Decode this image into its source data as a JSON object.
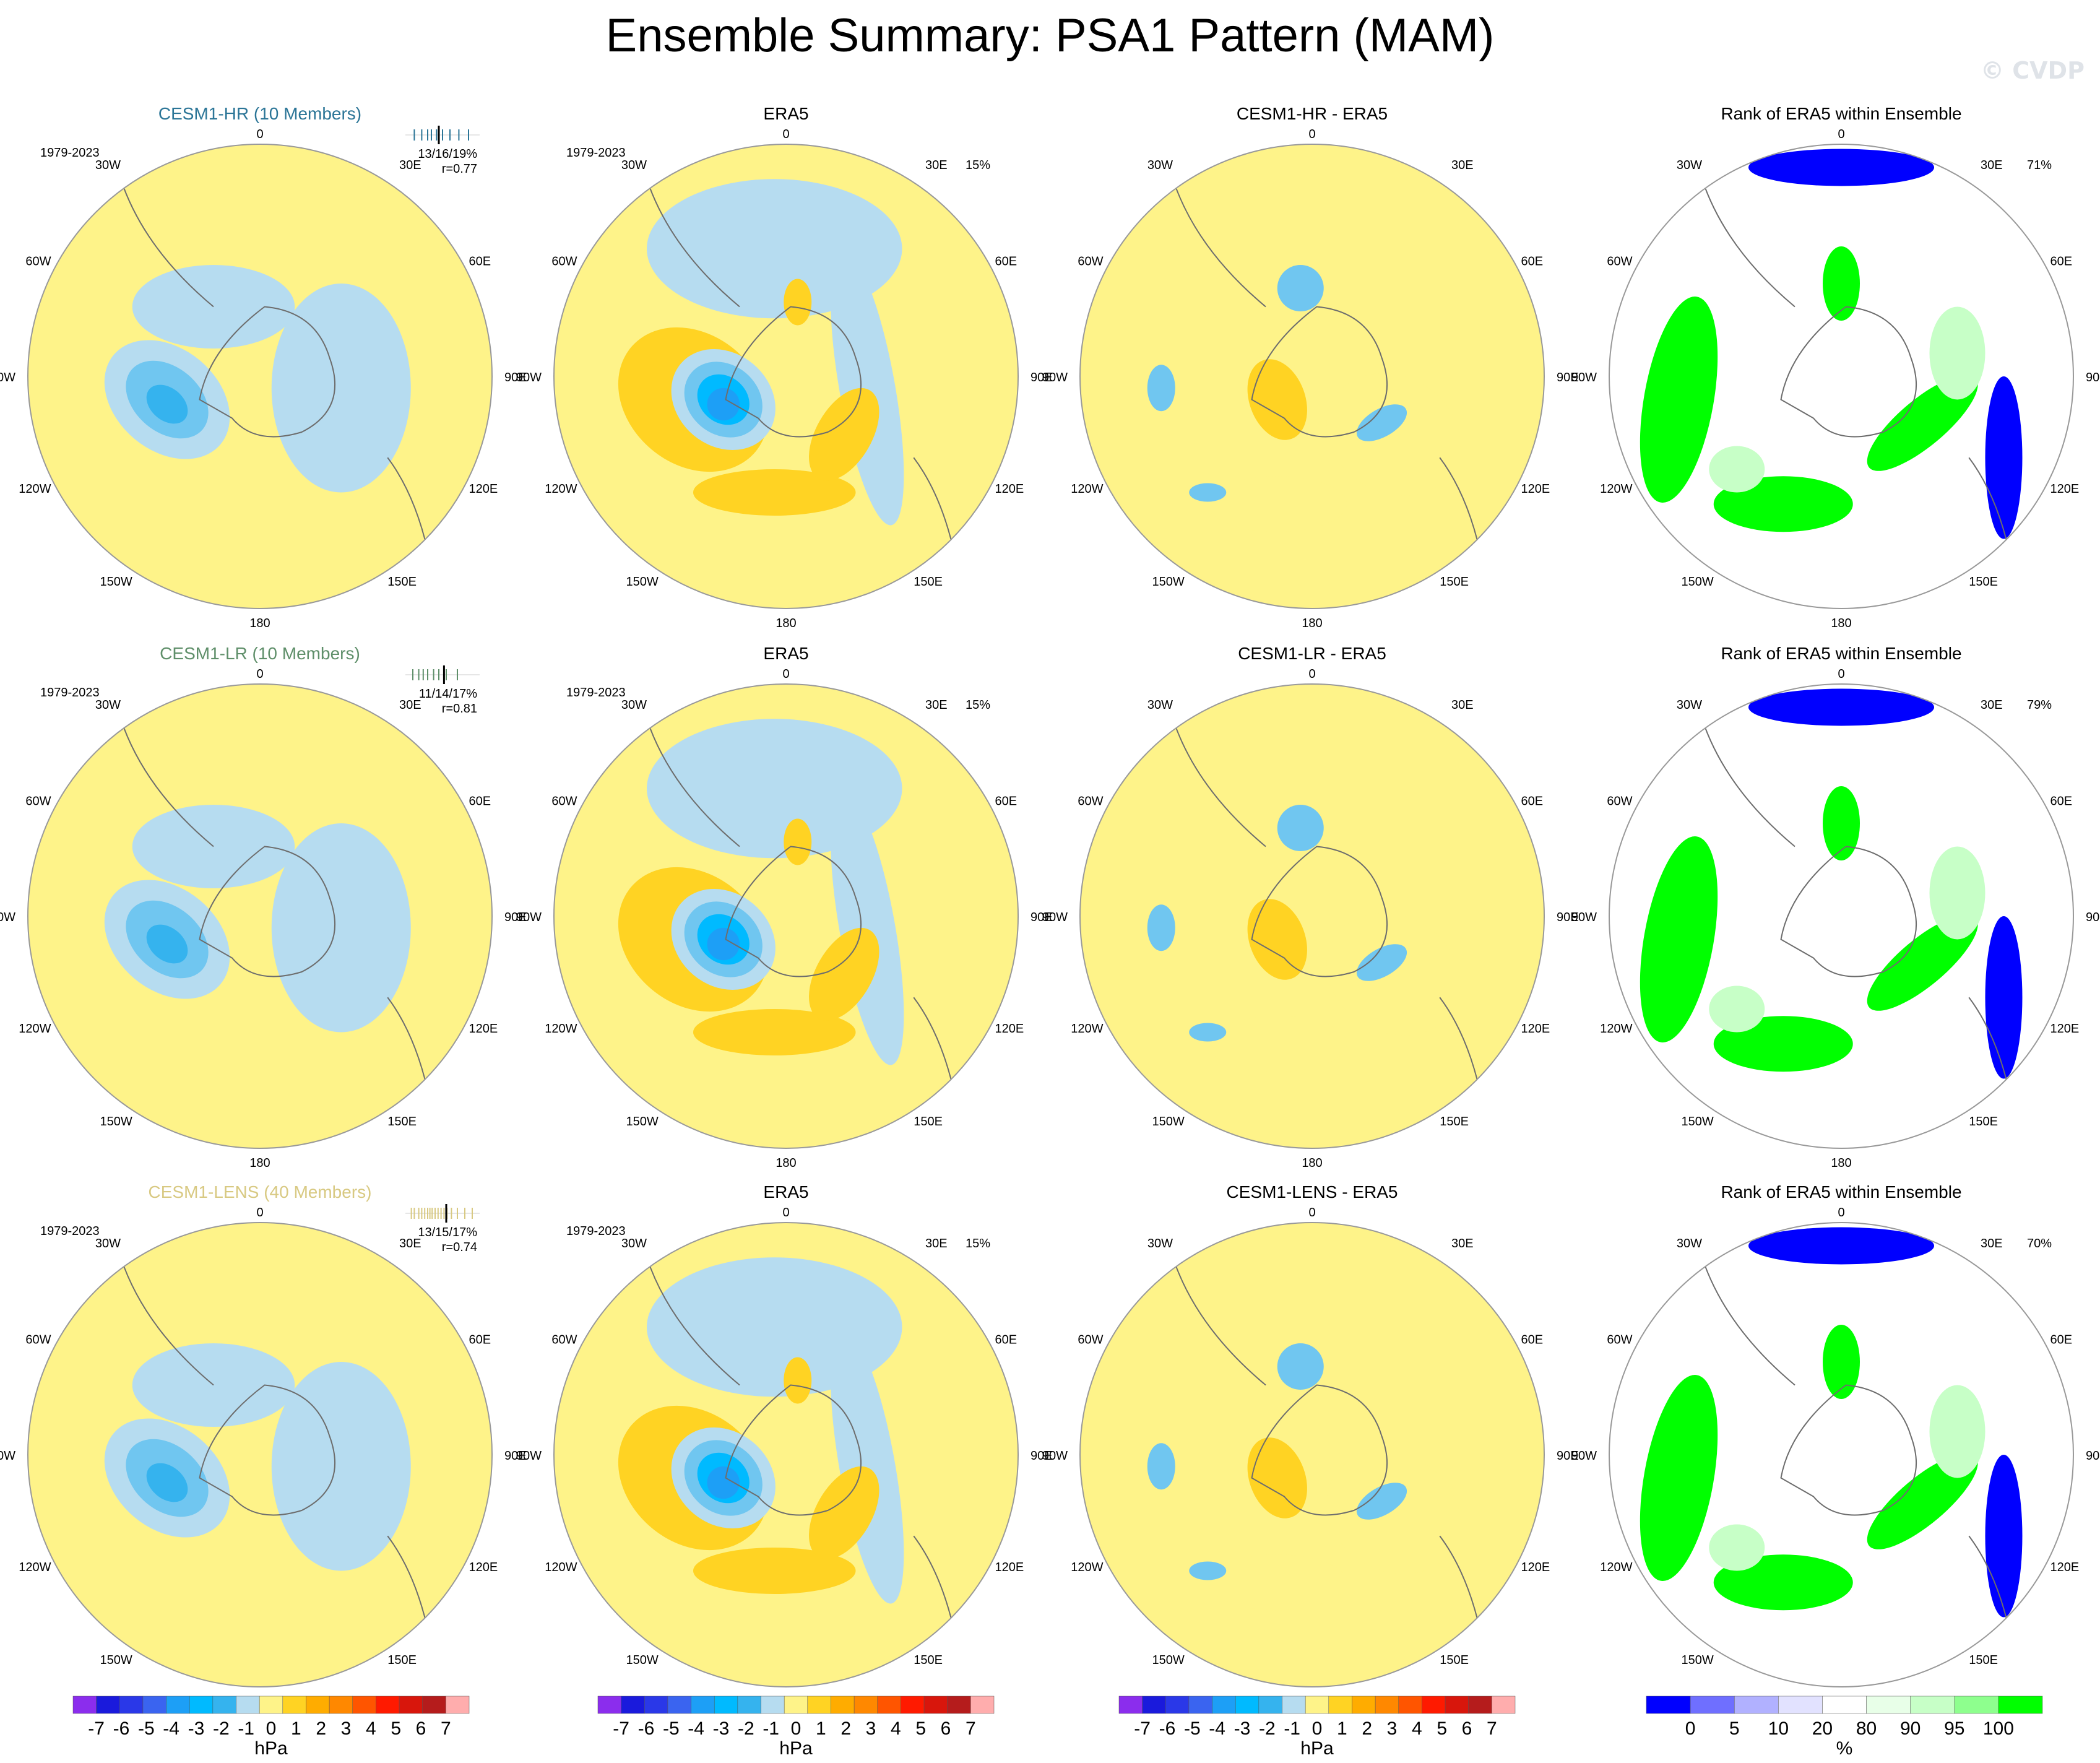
{
  "title": "Ensemble Summary: PSA1 Pattern (MAM)",
  "watermark": "© CVDP",
  "colors": {
    "hr": "#2b7597",
    "lr": "#5f8f6a",
    "lens": "#d8c982",
    "ocean": "#b6dcf0",
    "coast": "#6d6d6d",
    "pos1": "#fef389",
    "pos2": "#ffd323",
    "pos3": "#ffac00",
    "neg1": "#b6dcf0",
    "neg2": "#70c6f0",
    "neg3": "#35b3ee",
    "neg4": "#00baff",
    "neg5": "#1d9ff6",
    "rank_low": "#0000ff",
    "rank_5": "#6f6fff",
    "rank_10": "#b1b1ff",
    "rank_20": "#e2e2ff",
    "rank_mid": "#ffffff",
    "rank_80": "#e8ffe8",
    "rank_90": "#c7ffc7",
    "rank_95": "#8eff8e",
    "rank_high": "#00ff00"
  },
  "map_labels": {
    "lon_top": "0",
    "lon_bottom": "180",
    "lon_30W": "30W",
    "lon_30E": "30E",
    "lon_60W": "60W",
    "lon_60E": "60E",
    "lon_90W": "90W",
    "lon_90E": "90E",
    "lon_120W": "120W",
    "lon_120E": "120E",
    "lon_150W": "150W",
    "lon_150E": "150E"
  },
  "rows": [
    {
      "model": "CESM1-HR (10 Members)",
      "model_color_key": "hr",
      "years": "1979-2023",
      "stats_pct": "13/16/19%",
      "stats_r": "r=0.77",
      "era5_title": "ERA5",
      "era5_years": "1979-2023",
      "era5_pct": "15%",
      "diff_title": "CESM1-HR - ERA5",
      "rank_title": "Rank of ERA5 within Ensemble",
      "rank_pct": "71%"
    },
    {
      "model": "CESM1-LR (10 Members)",
      "model_color_key": "lr",
      "years": "1979-2023",
      "stats_pct": "11/14/17%",
      "stats_r": "r=0.81",
      "era5_title": "ERA5",
      "era5_years": "1979-2023",
      "era5_pct": "15%",
      "diff_title": "CESM1-LR - ERA5",
      "rank_title": "Rank of ERA5 within Ensemble",
      "rank_pct": "79%"
    },
    {
      "model": "CESM1-LENS (40 Members)",
      "model_color_key": "lens",
      "years": "1979-2023",
      "stats_pct": "13/15/17%",
      "stats_r": "r=0.74",
      "era5_title": "ERA5",
      "era5_years": "1979-2023",
      "era5_pct": "15%",
      "diff_title": "CESM1-LENS - ERA5",
      "rank_title": "Rank of ERA5 within Ensemble",
      "rank_pct": "70%"
    }
  ],
  "chart_data": {
    "type": "heatmap",
    "projection": "south polar stereographic",
    "variable": "sea level pressure anomaly (PSA1 pattern)",
    "season": "MAM",
    "panels_per_row": [
      "model ensemble mean",
      "ERA5",
      "model minus ERA5",
      "rank of ERA5 within ensemble"
    ],
    "hpa_colorbar": {
      "unit": "hPa",
      "tick_labels": [
        "-7",
        "-6",
        "-5",
        "-4",
        "-3",
        "-2",
        "-1",
        "0",
        "1",
        "2",
        "3",
        "4",
        "5",
        "6",
        "7"
      ],
      "levels": [
        -7,
        -6,
        -5,
        -4,
        -3,
        -2,
        -1,
        0,
        1,
        2,
        3,
        4,
        5,
        6,
        7
      ],
      "colors": [
        "#8b2ded",
        "#1a1adc",
        "#2a38e8",
        "#3a64f0",
        "#1d9ff6",
        "#00baff",
        "#35b3ee",
        "#b6dcf0",
        "#fef389",
        "#ffd323",
        "#ffac00",
        "#ff8800",
        "#ff5500",
        "#ff1a00",
        "#d8160c",
        "#b51c1c",
        "#ffadad"
      ]
    },
    "rank_colorbar": {
      "unit": "%",
      "tick_labels": [
        "0",
        "5",
        "10",
        "20",
        "80",
        "90",
        "95",
        "100"
      ],
      "levels": [
        0,
        5,
        10,
        20,
        80,
        90,
        95,
        100
      ],
      "colors": [
        "#0000ff",
        "#6f6fff",
        "#b1b1ff",
        "#e2e2ff",
        "#ffffff",
        "#e8ffe8",
        "#c7ffc7",
        "#8eff8e",
        "#00ff00"
      ]
    },
    "ensemble_spread_ticks": {
      "hr": [
        0.12,
        0.22,
        0.3,
        0.35,
        0.42,
        0.5,
        0.6,
        0.72,
        0.85
      ],
      "lr": [
        0.1,
        0.18,
        0.24,
        0.3,
        0.38,
        0.45,
        0.55,
        0.7
      ],
      "lens": [
        0.08,
        0.12,
        0.18,
        0.22,
        0.26,
        0.3,
        0.33,
        0.36,
        0.4,
        0.44,
        0.48,
        0.52,
        0.56,
        0.62,
        0.7,
        0.8,
        0.9
      ]
    },
    "ensemble_spread_marker": {
      "hr": 0.45,
      "lr": 0.52,
      "lens": 0.55
    }
  }
}
